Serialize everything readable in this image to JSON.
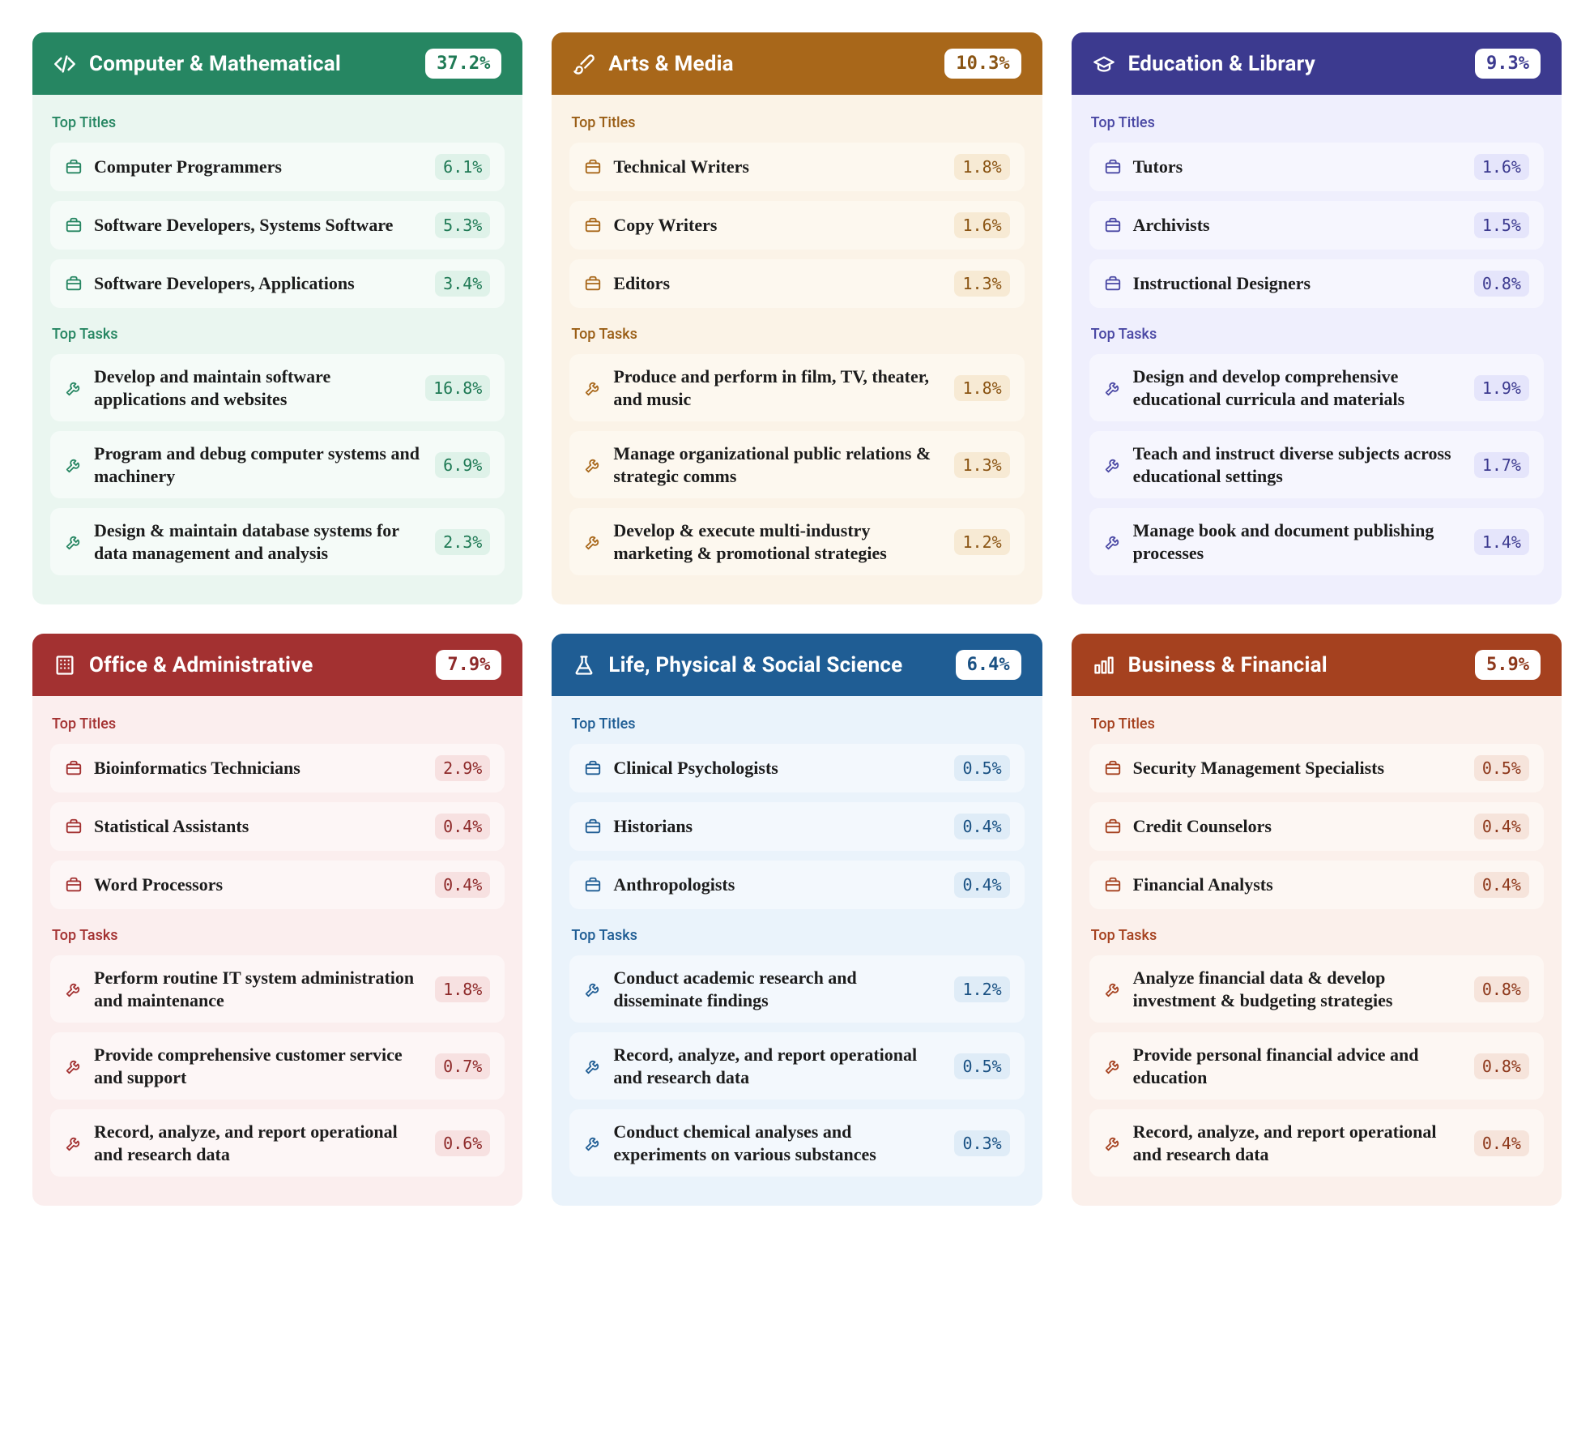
{
  "labels": {
    "top_titles": "Top Titles",
    "top_tasks": "Top Tasks"
  },
  "cards": [
    {
      "icon": "code",
      "title": "Computer & Mathematical",
      "pct": "37.2%",
      "header_bg": "#268662",
      "body_bg": "#eaf6f0",
      "label_color": "#268662",
      "row_bg": "#f5fbf8",
      "row_icon_color": "#268662",
      "badge_bg": "#dff2e9",
      "badge_fg": "#1f7a55",
      "header_badge_fg": "#1f7a55",
      "titles": [
        {
          "t": "Computer Programmers",
          "p": "6.1%"
        },
        {
          "t": "Software Developers, Systems Software",
          "p": "5.3%"
        },
        {
          "t": "Software Developers, Applications",
          "p": "3.4%"
        }
      ],
      "tasks": [
        {
          "t": "Develop and maintain software applications and websites",
          "p": "16.8%"
        },
        {
          "t": "Program and debug computer systems and machinery",
          "p": "6.9%"
        },
        {
          "t": "Design & maintain database systems for data management and analysis",
          "p": "2.3%"
        }
      ]
    },
    {
      "icon": "brush",
      "title": "Arts & Media",
      "pct": "10.3%",
      "header_bg": "#a8671a",
      "body_bg": "#fbf3e7",
      "label_color": "#9a5e16",
      "row_bg": "#fdf8ef",
      "row_icon_color": "#a8671a",
      "badge_bg": "#f7ead4",
      "badge_fg": "#8a5413",
      "header_badge_fg": "#8a5413",
      "titles": [
        {
          "t": "Technical Writers",
          "p": "1.8%"
        },
        {
          "t": "Copy Writers",
          "p": "1.6%"
        },
        {
          "t": "Editors",
          "p": "1.3%"
        }
      ],
      "tasks": [
        {
          "t": "Produce and perform in film, TV, theater, and music",
          "p": "1.8%"
        },
        {
          "t": "Manage organizational public relations & strategic comms",
          "p": "1.3%"
        },
        {
          "t": "Develop & execute multi-industry marketing & promotional strategies",
          "p": "1.2%"
        }
      ]
    },
    {
      "icon": "gradcap",
      "title": "Education & Library",
      "pct": "9.3%",
      "header_bg": "#3c3a8f",
      "body_bg": "#efeffd",
      "label_color": "#4a48a4",
      "row_bg": "#f6f6fe",
      "row_icon_color": "#4a48a4",
      "badge_bg": "#e5e5fb",
      "badge_fg": "#3c3a8f",
      "header_badge_fg": "#3c3a8f",
      "titles": [
        {
          "t": "Tutors",
          "p": "1.6%"
        },
        {
          "t": "Archivists",
          "p": "1.5%"
        },
        {
          "t": "Instructional Designers",
          "p": "0.8%"
        }
      ],
      "tasks": [
        {
          "t": "Design and develop comprehensive educational curricula and materials",
          "p": "1.9%"
        },
        {
          "t": "Teach and instruct diverse subjects across educational settings",
          "p": "1.7%"
        },
        {
          "t": "Manage book and document publishing processes",
          "p": "1.4%"
        }
      ]
    },
    {
      "icon": "building",
      "title": "Office & Administrative",
      "pct": "7.9%",
      "header_bg": "#a33131",
      "body_bg": "#fbeeee",
      "label_color": "#a33131",
      "row_bg": "#fdf6f6",
      "row_icon_color": "#a33131",
      "badge_bg": "#f7e1e1",
      "badge_fg": "#8e2a2a",
      "header_badge_fg": "#8e2a2a",
      "titles": [
        {
          "t": "Bioinformatics Technicians",
          "p": "2.9%"
        },
        {
          "t": "Statistical Assistants",
          "p": "0.4%"
        },
        {
          "t": "Word Processors",
          "p": "0.4%"
        }
      ],
      "tasks": [
        {
          "t": "Perform routine IT system administration and maintenance",
          "p": "1.8%"
        },
        {
          "t": "Provide comprehensive customer service and support",
          "p": "0.7%"
        },
        {
          "t": "Record, analyze, and report operational and research data",
          "p": "0.6%"
        }
      ]
    },
    {
      "icon": "flask",
      "title": "Life, Physical & Social Science",
      "pct": "6.4%",
      "header_bg": "#1f5d94",
      "body_bg": "#eaf3fb",
      "label_color": "#1f5d94",
      "row_bg": "#f3f8fd",
      "row_icon_color": "#1f5d94",
      "badge_bg": "#dfecf7",
      "badge_fg": "#1a5183",
      "header_badge_fg": "#1a5183",
      "titles": [
        {
          "t": "Clinical Psychologists",
          "p": "0.5%"
        },
        {
          "t": "Historians",
          "p": "0.4%"
        },
        {
          "t": "Anthropologists",
          "p": "0.4%"
        }
      ],
      "tasks": [
        {
          "t": "Conduct academic research and disseminate findings",
          "p": "1.2%"
        },
        {
          "t": "Record, analyze, and report operational and research data",
          "p": "0.5%"
        },
        {
          "t": "Conduct chemical analyses and experiments on various substances",
          "p": "0.3%"
        }
      ]
    },
    {
      "icon": "bars",
      "title": "Business & Financial",
      "pct": "5.9%",
      "header_bg": "#a5411f",
      "body_bg": "#fbf0eb",
      "label_color": "#a5411f",
      "row_bg": "#fdf7f3",
      "row_icon_color": "#a5411f",
      "badge_bg": "#f6e4db",
      "badge_fg": "#8d371a",
      "header_badge_fg": "#8d371a",
      "titles": [
        {
          "t": "Security Management Specialists",
          "p": "0.5%"
        },
        {
          "t": "Credit Counselors",
          "p": "0.4%"
        },
        {
          "t": "Financial Analysts",
          "p": "0.4%"
        }
      ],
      "tasks": [
        {
          "t": "Analyze financial data & develop investment & budgeting strategies",
          "p": "0.8%"
        },
        {
          "t": "Provide personal financial advice and education",
          "p": "0.8%"
        },
        {
          "t": "Record, analyze, and report operational and research data",
          "p": "0.4%"
        }
      ]
    }
  ]
}
